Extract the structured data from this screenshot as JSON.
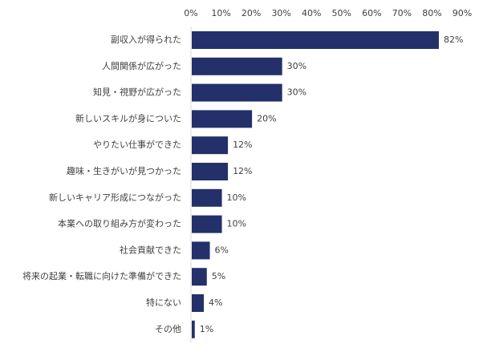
{
  "chart_data": {
    "type": "bar",
    "orientation": "horizontal",
    "xlim": [
      0,
      90
    ],
    "x_ticks": [
      "0%",
      "10%",
      "20%",
      "30%",
      "40%",
      "50%",
      "60%",
      "70%",
      "80%",
      "90%"
    ],
    "x_tick_values": [
      0,
      10,
      20,
      30,
      40,
      50,
      60,
      70,
      80,
      90
    ],
    "x_axis_position": "top",
    "grid": false,
    "bar_color": "#23306a",
    "categories": [
      "副収入が得られた",
      "人間関係が広がった",
      "知見・視野が広がった",
      "新しいスキルが身についた",
      "やりたい仕事ができた",
      "趣味・生きがいが見つかった",
      "新しいキャリア形成につながった",
      "本業への取り組み方が変わった",
      "社会貢献できた",
      "将来の起業・転職に向けた準備ができた",
      "特にない",
      "その他"
    ],
    "values": [
      82,
      30,
      30,
      20,
      12,
      12,
      10,
      10,
      6,
      5,
      4,
      1
    ],
    "value_labels": [
      "82%",
      "30%",
      "30%",
      "20%",
      "12%",
      "12%",
      "10%",
      "10%",
      "6%",
      "5%",
      "4%",
      "1%"
    ]
  }
}
